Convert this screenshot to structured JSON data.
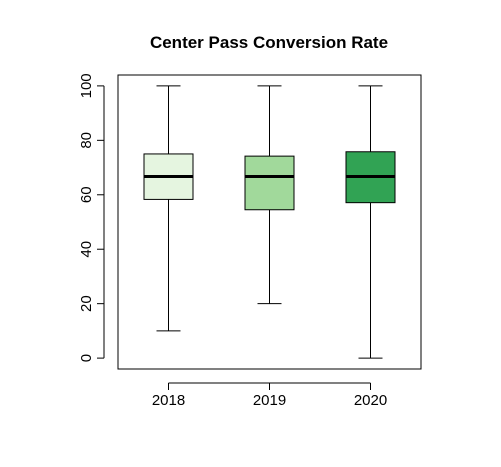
{
  "chart_data": {
    "type": "boxplot",
    "title": "Center Pass Conversion Rate",
    "xlabel": "",
    "ylabel": "",
    "ylim": [
      -4,
      104
    ],
    "yticks": [
      0,
      20,
      40,
      60,
      80,
      100
    ],
    "grid": false,
    "legend": "none",
    "categories": [
      "2018",
      "2019",
      "2020"
    ],
    "boxes": [
      {
        "category": "2018",
        "min": 10,
        "q1": 58.3,
        "median": 66.7,
        "q3": 75,
        "max": 100,
        "color": "#e5f5e0"
      },
      {
        "category": "2019",
        "min": 20,
        "q1": 54.5,
        "median": 66.7,
        "q3": 74.2,
        "max": 100,
        "color": "#a1d99b"
      },
      {
        "category": "2020",
        "min": 0,
        "q1": 57.1,
        "median": 66.7,
        "q3": 75.8,
        "max": 100,
        "color": "#31a354"
      }
    ]
  }
}
